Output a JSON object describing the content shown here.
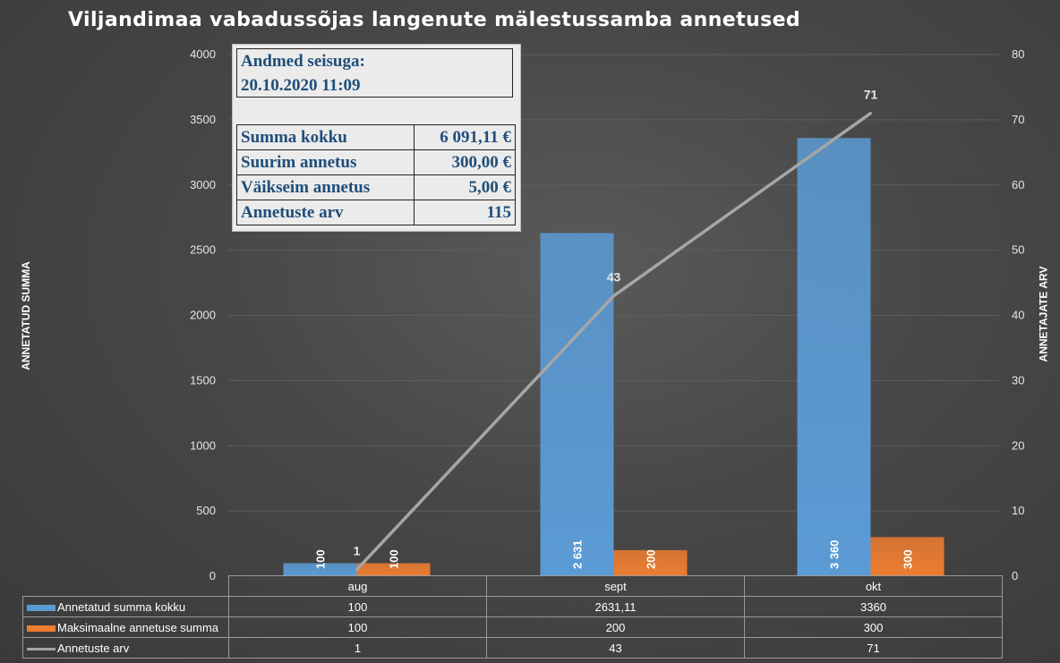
{
  "title": "Viljandimaa vabadussõjas langenute mälestussamba annetused",
  "colors": {
    "series_sum": "#5b9bd5",
    "series_max": "#ed7d31",
    "series_count": "#a6a6a6",
    "grid": "#5e5e5e"
  },
  "info_box": {
    "header_line1": "Andmed seisuga:",
    "header_line2": "20.10.2020 11:09",
    "rows": [
      {
        "label": "Summa kokku",
        "value": "6 091,11 €"
      },
      {
        "label": "Suurim annetus",
        "value": "300,00 €"
      },
      {
        "label": "Väikseim annetus",
        "value": "5,00 €"
      },
      {
        "label": "Annetuste arv",
        "value": "115"
      }
    ]
  },
  "data_table": {
    "rows": [
      {
        "label": "Annetatud summa kokku",
        "cells": [
          "100",
          "2631,11",
          "3360"
        ]
      },
      {
        "label": "Maksimaalne annetuse summa",
        "cells": [
          "100",
          "200",
          "300"
        ]
      },
      {
        "label": "Annetuste arv",
        "cells": [
          "1",
          "43",
          "71"
        ]
      }
    ]
  },
  "chart_data": {
    "type": "bar",
    "title": "Viljandimaa vabadussõjas langenute mälestussamba annetused",
    "categories": [
      "aug",
      "sept",
      "okt"
    ],
    "ylabel": "ANNETATUD SUMMA",
    "y2label": "ANNETAJATE ARV",
    "ylim": [
      0,
      4000
    ],
    "y2lim": [
      0,
      80
    ],
    "yticks": [
      0,
      500,
      1000,
      1500,
      2000,
      2500,
      3000,
      3500,
      4000
    ],
    "y2ticks": [
      0,
      10,
      20,
      30,
      40,
      50,
      60,
      70,
      80
    ],
    "grid": true,
    "legend": "data table below chart",
    "series": [
      {
        "name": "Annetatud summa kokku",
        "type": "bar",
        "axis": "left",
        "values": [
          100,
          2631.11,
          3360
        ],
        "data_labels": [
          "100",
          "2 631",
          "3 360"
        ]
      },
      {
        "name": "Maksimaalne annetuse summa",
        "type": "bar",
        "axis": "left",
        "values": [
          100,
          200,
          300
        ],
        "data_labels": [
          "100",
          "200",
          "300"
        ]
      },
      {
        "name": "Annetuste arv",
        "type": "line",
        "axis": "right",
        "values": [
          1,
          43,
          71
        ],
        "data_labels": [
          "1",
          "43",
          "71"
        ]
      }
    ]
  }
}
